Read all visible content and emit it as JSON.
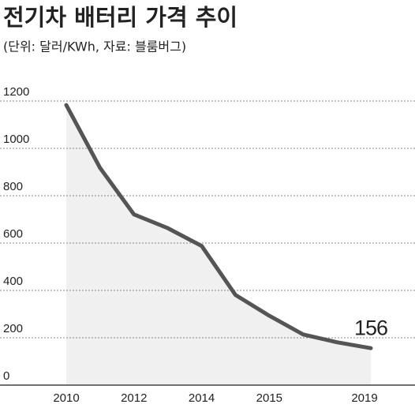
{
  "chart_data": {
    "type": "line",
    "title": "전기차 배터리 가격 추이",
    "subtitle": "(단위: 달러/KWh, 자료: 블룸버그)",
    "categories": [
      "2010",
      null,
      "2012",
      null,
      "2014",
      null,
      "2015",
      null,
      null,
      "2019"
    ],
    "series": [
      {
        "color": "#555555",
        "values": [
          1183,
          917,
          721,
          663,
          588,
          381,
          293,
          214,
          181,
          156
        ]
      }
    ],
    "label_index": 9,
    "area_color": "#f0f0f0",
    "ylim": [
      0,
      1200
    ],
    "yticks": [
      0,
      200,
      400,
      600,
      800,
      1000,
      1200
    ],
    "grid": true
  }
}
